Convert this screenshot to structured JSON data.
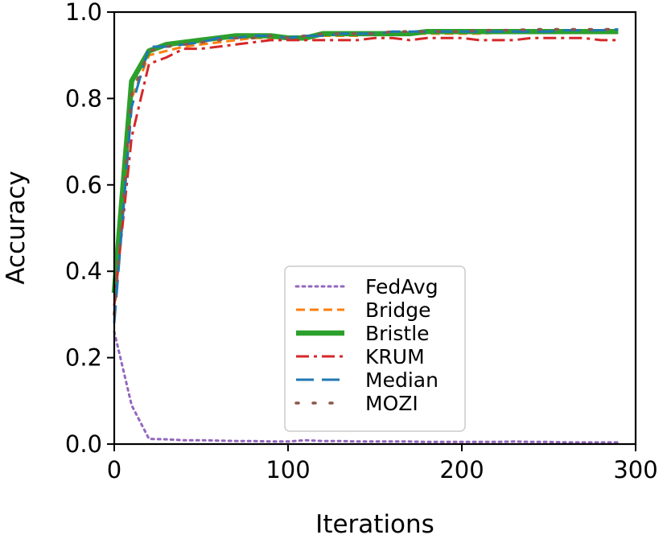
{
  "chart_data": {
    "type": "line",
    "xlabel": "Iterations",
    "ylabel": "Accuracy",
    "xlim": [
      0,
      300
    ],
    "ylim": [
      0.0,
      1.0
    ],
    "xticks": [
      0,
      100,
      200,
      300
    ],
    "yticks": [
      0.0,
      0.2,
      0.4,
      0.6,
      0.8,
      1.0
    ],
    "xtick_labels": [
      "0",
      "100",
      "200",
      "300"
    ],
    "ytick_labels": [
      "0.0",
      "0.2",
      "0.4",
      "0.6",
      "0.8",
      "1.0"
    ],
    "grid": false,
    "legend_position": "lower-center",
    "x": [
      0,
      10,
      20,
      30,
      40,
      50,
      60,
      70,
      80,
      90,
      100,
      110,
      120,
      130,
      140,
      150,
      160,
      170,
      180,
      190,
      200,
      210,
      220,
      230,
      240,
      250,
      260,
      270,
      280,
      290
    ],
    "series": [
      {
        "name": "FedAvg",
        "color": "#9467bd",
        "dash": "dotted",
        "values": [
          0.26,
          0.09,
          0.012,
          0.011,
          0.009,
          0.009,
          0.008,
          0.007,
          0.007,
          0.006,
          0.006,
          0.009,
          0.007,
          0.007,
          0.006,
          0.006,
          0.006,
          0.006,
          0.005,
          0.005,
          0.005,
          0.005,
          0.005,
          0.006,
          0.005,
          0.005,
          0.004,
          0.004,
          0.004,
          0.004
        ]
      },
      {
        "name": "Bridge",
        "color": "#ff7f0e",
        "dash": "dashed",
        "values": [
          0.3,
          0.8,
          0.9,
          0.91,
          0.92,
          0.925,
          0.93,
          0.935,
          0.94,
          0.94,
          0.94,
          0.94,
          0.945,
          0.945,
          0.945,
          0.95,
          0.95,
          0.95,
          0.95,
          0.95,
          0.95,
          0.95,
          0.952,
          0.952,
          0.952,
          0.952,
          0.952,
          0.952,
          0.952,
          0.953
        ]
      },
      {
        "name": "Bristle",
        "color": "#2ca02c",
        "dash": "solid",
        "values": [
          0.35,
          0.84,
          0.91,
          0.925,
          0.93,
          0.935,
          0.94,
          0.945,
          0.945,
          0.945,
          0.94,
          0.94,
          0.95,
          0.95,
          0.95,
          0.95,
          0.95,
          0.95,
          0.955,
          0.955,
          0.955,
          0.955,
          0.955,
          0.955,
          0.955,
          0.955,
          0.955,
          0.955,
          0.955,
          0.955
        ]
      },
      {
        "name": "KRUM",
        "color": "#d62728",
        "dash": "dashdot",
        "values": [
          0.32,
          0.71,
          0.88,
          0.895,
          0.915,
          0.915,
          0.92,
          0.925,
          0.93,
          0.935,
          0.935,
          0.935,
          0.935,
          0.935,
          0.935,
          0.94,
          0.94,
          0.935,
          0.94,
          0.94,
          0.94,
          0.935,
          0.935,
          0.935,
          0.94,
          0.94,
          0.94,
          0.94,
          0.935,
          0.935
        ]
      },
      {
        "name": "Median",
        "color": "#1f77b4",
        "dash": "longdash",
        "values": [
          0.28,
          0.78,
          0.92,
          0.92,
          0.925,
          0.93,
          0.94,
          0.94,
          0.945,
          0.945,
          0.94,
          0.945,
          0.945,
          0.95,
          0.95,
          0.95,
          0.955,
          0.955,
          0.955,
          0.955,
          0.955,
          0.955,
          0.955,
          0.955,
          0.955,
          0.955,
          0.958,
          0.958,
          0.958,
          0.96
        ]
      },
      {
        "name": "MOZI",
        "color": "#8c564b",
        "dash": "sparse-dotted",
        "values": [
          0.3,
          0.81,
          0.91,
          0.92,
          0.925,
          0.93,
          0.935,
          0.94,
          0.94,
          0.945,
          0.94,
          0.945,
          0.95,
          0.95,
          0.95,
          0.95,
          0.955,
          0.955,
          0.955,
          0.955,
          0.955,
          0.958,
          0.958,
          0.958,
          0.96,
          0.96,
          0.96,
          0.96,
          0.96,
          0.96
        ]
      }
    ]
  }
}
